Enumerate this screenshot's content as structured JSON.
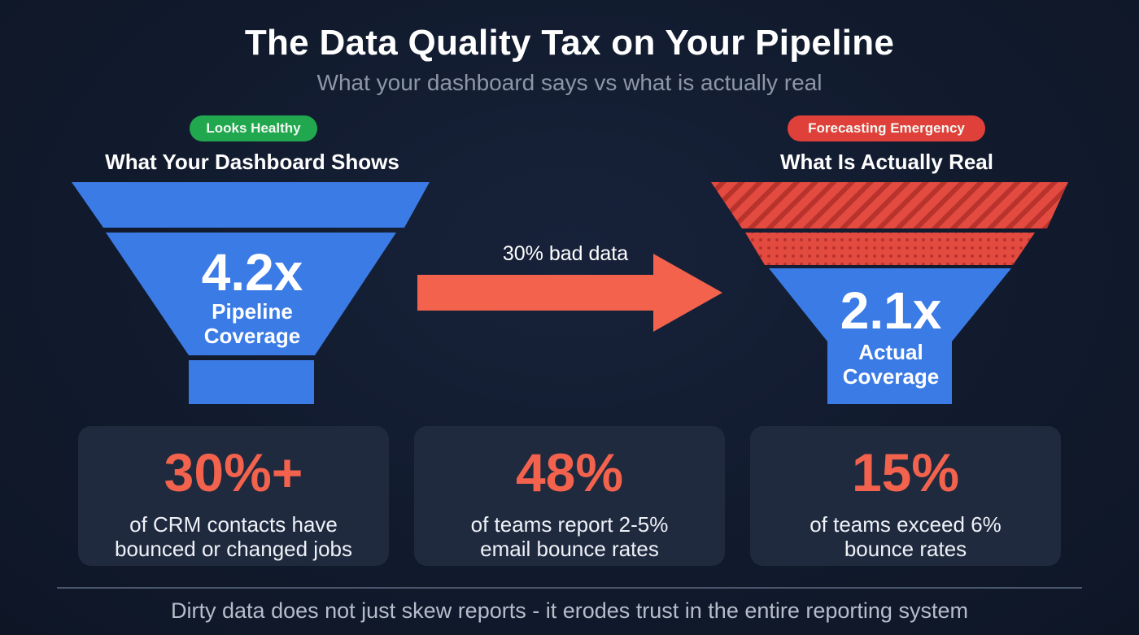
{
  "title": "The Data Quality Tax on Your Pipeline",
  "subtitle": "What your dashboard says vs what is actually real",
  "left": {
    "badge": "Looks Healthy",
    "heading": "What Your Dashboard Shows",
    "value": "4.2x",
    "label_line1": "Pipeline",
    "label_line2": "Coverage"
  },
  "arrow": {
    "label": "30% bad data"
  },
  "right": {
    "badge": "Forecasting Emergency",
    "heading": "What Is Actually Real",
    "value": "2.1x",
    "label_line1": "Actual",
    "label_line2": "Coverage"
  },
  "stats": [
    {
      "value": "30%+",
      "line1": "of CRM contacts have",
      "line2": "bounced or changed jobs"
    },
    {
      "value": "48%",
      "line1": "of teams report 2-5%",
      "line2": "email bounce rates"
    },
    {
      "value": "15%",
      "line1": "of teams exceed 6%",
      "line2": "bounce rates"
    }
  ],
  "footer": "Dirty data does not just skew reports - it erodes trust in the entire reporting system",
  "colors": {
    "blue": "#3b7be6",
    "red": "#e34a40",
    "coral": "#f2624c",
    "green": "#21a84f",
    "card": "#1f2a3f"
  }
}
